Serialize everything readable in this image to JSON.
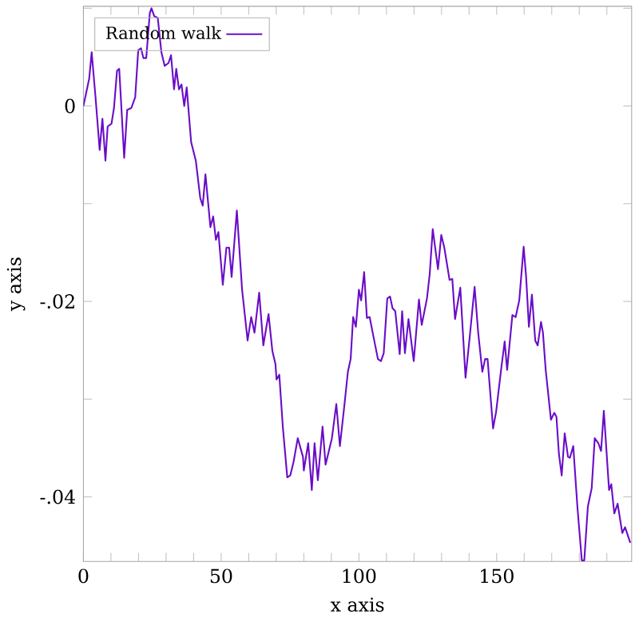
{
  "chart_data": {
    "type": "line",
    "xlabel": "x axis",
    "ylabel": "y axis",
    "legend": "top left",
    "xlim": [
      0,
      199
    ],
    "ylim": [
      -0.0466,
      0.0102
    ],
    "xticks": [
      0,
      {
        "value": 10,
        "label": null
      },
      {
        "value": 20,
        "label": null
      },
      {
        "value": 30,
        "label": null
      },
      {
        "value": 40,
        "label": null
      },
      50,
      {
        "value": 60,
        "label": null
      },
      {
        "value": 70,
        "label": null
      },
      {
        "value": 80,
        "label": null
      },
      {
        "value": 90,
        "label": null
      },
      100,
      {
        "value": 110,
        "label": null
      },
      {
        "value": 120,
        "label": null
      },
      {
        "value": 130,
        "label": null
      },
      {
        "value": 140,
        "label": null
      },
      150,
      {
        "value": 160,
        "label": null
      },
      {
        "value": 170,
        "label": null
      },
      {
        "value": 180,
        "label": null
      },
      {
        "value": 190,
        "label": null
      }
    ],
    "yticks": [
      {
        "value": 0.01,
        "label": null
      },
      0,
      {
        "value": -0.01,
        "label": null
      },
      {
        "value": -0.02,
        "label": "-.02"
      },
      {
        "value": -0.03,
        "label": null
      },
      {
        "value": -0.04,
        "label": "-.04"
      }
    ],
    "series": [
      {
        "name": "Random walk",
        "color": "#6a0dc8",
        "x": [
          0,
          1.2,
          2.1,
          3,
          4.4,
          5.9,
          6.9,
          8,
          8.8,
          10.2,
          11.1,
          12.2,
          13,
          14.8,
          15.9,
          17.4,
          18.8,
          19.9,
          20.9,
          21.8,
          22.8,
          24.1,
          24.7,
          25.7,
          27,
          28.3,
          29.5,
          30.9,
          31.8,
          32.9,
          33.7,
          34.7,
          35.6,
          36.6,
          37.5,
          39.1,
          40.8,
          42.4,
          43.3,
          44.3,
          46.1,
          47.1,
          48.1,
          49,
          50.6,
          51.9,
          52.9,
          53.8,
          55.7,
          57.6,
          59.6,
          60.9,
          62.1,
          63.8,
          65.3,
          67.2,
          68.6,
          69.7,
          70.1,
          71.1,
          72.4,
          74,
          75.1,
          76.3,
          77.8,
          79.7,
          80,
          81.6,
          82.9,
          83.9,
          85.1,
          86.8,
          87.9,
          90.2,
          91.8,
          93.1,
          94.7,
          96,
          97,
          97.9,
          98.9,
          100,
          100.8,
          101.9,
          102.9,
          103.9,
          105,
          106.9,
          108,
          109,
          110.3,
          111.3,
          112.2,
          113.2,
          114.8,
          115.7,
          116.7,
          118,
          119.9,
          121.8,
          122.8,
          124.7,
          125.7,
          126.8,
          128.7,
          129.9,
          131,
          132.9,
          133.9,
          134.9,
          136.8,
          138.7,
          140.2,
          142,
          143.3,
          144.8,
          145.8,
          146.7,
          148.7,
          149.8,
          151.6,
          152.9,
          153.8,
          155.7,
          156.9,
          158.2,
          159.8,
          160.7,
          161.7,
          162.8,
          164,
          164.9,
          166.1,
          166.8,
          167.8,
          169.7,
          170.9,
          171.7,
          172.6,
          173.6,
          174.7,
          175.9,
          176.6,
          177.8,
          179.3,
          180.9,
          181.8,
          183.1,
          184.5,
          185.6,
          186.9,
          187.9,
          188.9,
          190.8,
          191.6,
          192.7,
          193.9,
          195.6,
          196.6,
          198.5
        ],
        "values": [
          0,
          0.0016,
          0.0028,
          0.0055,
          0.0009,
          -0.0045,
          -0.0013,
          -0.0056,
          -0.0021,
          -0.0018,
          -0.0002,
          0.0036,
          0.0038,
          -0.0053,
          -0.0004,
          -0.0002,
          0.0009,
          0.0057,
          0.0059,
          0.0049,
          0.0049,
          0.0095,
          0.01,
          0.0092,
          0.009,
          0.0055,
          0.0041,
          0.0044,
          0.0052,
          0.0017,
          0.0038,
          0.0017,
          0.0022,
          0.0,
          0.0019,
          -0.0037,
          -0.0056,
          -0.0094,
          -0.0102,
          -0.007,
          -0.0124,
          -0.0113,
          -0.0137,
          -0.0129,
          -0.0183,
          -0.0145,
          -0.0145,
          -0.0175,
          -0.0107,
          -0.0188,
          -0.024,
          -0.0216,
          -0.0232,
          -0.0191,
          -0.0245,
          -0.0213,
          -0.0251,
          -0.0264,
          -0.028,
          -0.0275,
          -0.0329,
          -0.038,
          -0.0378,
          -0.0364,
          -0.034,
          -0.0359,
          -0.0373,
          -0.0345,
          -0.0393,
          -0.0345,
          -0.0383,
          -0.0328,
          -0.0367,
          -0.034,
          -0.0305,
          -0.0348,
          -0.0307,
          -0.0272,
          -0.0259,
          -0.0216,
          -0.0226,
          -0.0188,
          -0.0199,
          -0.017,
          -0.0217,
          -0.0216,
          -0.0232,
          -0.0259,
          -0.0261,
          -0.0253,
          -0.0197,
          -0.0195,
          -0.0207,
          -0.021,
          -0.0254,
          -0.021,
          -0.0253,
          -0.0218,
          -0.0261,
          -0.0198,
          -0.0224,
          -0.0197,
          -0.0172,
          -0.0126,
          -0.0167,
          -0.0132,
          -0.0145,
          -0.0178,
          -0.0177,
          -0.0218,
          -0.0186,
          -0.0278,
          -0.0237,
          -0.0185,
          -0.0232,
          -0.0272,
          -0.0259,
          -0.0259,
          -0.033,
          -0.0313,
          -0.027,
          -0.0241,
          -0.027,
          -0.0214,
          -0.0216,
          -0.0199,
          -0.0144,
          -0.0175,
          -0.0226,
          -0.0193,
          -0.024,
          -0.0245,
          -0.0221,
          -0.0232,
          -0.027,
          -0.0321,
          -0.0314,
          -0.0318,
          -0.0356,
          -0.0378,
          -0.0335,
          -0.0359,
          -0.036,
          -0.0348,
          -0.041,
          -0.0465,
          -0.0465,
          -0.041,
          -0.0391,
          -0.034,
          -0.0345,
          -0.0353,
          -0.0312,
          -0.0393,
          -0.0387,
          -0.0417,
          -0.0407,
          -0.0437,
          -0.0431,
          -0.0447
        ]
      }
    ]
  }
}
